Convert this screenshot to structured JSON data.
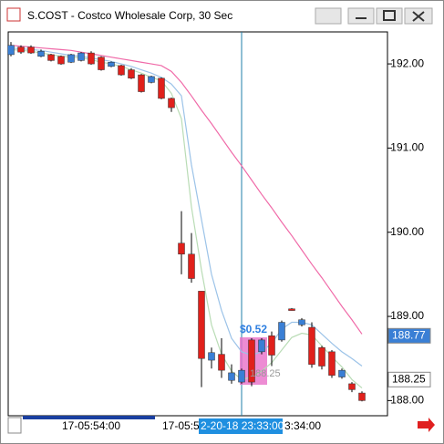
{
  "window_title": "S.COST - Costco Wholesale Corp, 30 Sec",
  "chart_data": {
    "type": "candlestick",
    "up_color": "#3a7fd5",
    "down_color": "#e0201b",
    "candles": {
      "open": [
        192.11,
        192.2,
        192.2,
        192.09,
        192.11,
        192.09,
        192.02,
        192.04,
        192.13,
        192.08,
        191.97,
        191.98,
        191.93,
        191.87,
        191.78,
        191.83,
        191.59,
        189.87,
        189.74,
        189.3,
        188.48,
        188.55,
        188.24,
        188.22,
        188.72,
        188.58,
        188.77,
        188.72,
        189.09,
        188.9,
        188.87,
        188.63,
        188.58,
        188.28,
        188.2,
        188.09
      ],
      "high": [
        192.26,
        192.22,
        192.22,
        192.17,
        192.12,
        192.1,
        192.12,
        192.14,
        192.15,
        192.09,
        192.03,
        191.99,
        191.95,
        191.88,
        191.86,
        191.84,
        191.6,
        190.25,
        189.99,
        189.3,
        188.63,
        188.74,
        188.43,
        188.38,
        188.74,
        188.74,
        188.82,
        188.95,
        189.1,
        188.98,
        188.93,
        188.65,
        188.6,
        188.38,
        188.22,
        188.11
      ],
      "low": [
        192.09,
        192.12,
        192.12,
        192.08,
        192.03,
        191.99,
        192.01,
        192.03,
        191.99,
        191.92,
        191.96,
        191.86,
        191.82,
        191.66,
        191.77,
        191.58,
        191.43,
        189.5,
        189.4,
        188.16,
        188.38,
        188.27,
        188.2,
        188.2,
        188.17,
        188.55,
        188.41,
        188.7,
        189.07,
        188.88,
        188.39,
        188.37,
        188.27,
        188.26,
        188.1,
        187.99
      ],
      "close": [
        192.22,
        192.14,
        192.13,
        192.15,
        192.04,
        192.0,
        192.11,
        192.13,
        192.0,
        191.93,
        192.02,
        191.87,
        191.83,
        191.67,
        191.85,
        191.59,
        191.48,
        189.74,
        189.45,
        188.5,
        188.57,
        188.36,
        188.33,
        188.36,
        188.22,
        188.72,
        188.54,
        188.93,
        189.07,
        188.96,
        188.43,
        188.41,
        188.3,
        188.36,
        188.13,
        188.0
      ]
    },
    "series": [
      {
        "color": "#f06aa8",
        "values": [
          192.22,
          192.21,
          192.2,
          192.19,
          192.18,
          192.17,
          192.16,
          192.14,
          192.12,
          192.1,
          192.08,
          192.06,
          192.04,
          192.02,
          192.0,
          191.98,
          191.91,
          191.78,
          191.62,
          191.45,
          191.29,
          191.12,
          190.95,
          190.79,
          190.62,
          190.45,
          190.29,
          190.12,
          189.96,
          189.79,
          189.62,
          189.46,
          189.29,
          189.12,
          188.96,
          188.79
        ]
      },
      {
        "color": "#9cc3e8",
        "values": [
          192.19,
          192.18,
          192.17,
          192.16,
          192.14,
          192.12,
          192.1,
          192.09,
          192.07,
          192.05,
          192.03,
          192.0,
          191.97,
          191.93,
          191.89,
          191.84,
          191.76,
          191.62,
          190.8,
          190.15,
          189.5,
          189.07,
          188.74,
          188.58,
          188.54,
          188.58,
          188.68,
          188.85,
          188.93,
          188.93,
          188.9,
          188.79,
          188.68,
          188.58,
          188.5,
          188.41
        ]
      },
      {
        "color": "#b9dcb5",
        "values": [
          192.17,
          192.16,
          192.15,
          192.13,
          192.11,
          192.09,
          192.08,
          192.07,
          192.05,
          192.02,
          192.0,
          191.97,
          191.93,
          191.89,
          191.84,
          191.8,
          191.65,
          191.35,
          190.3,
          189.55,
          188.9,
          188.55,
          188.35,
          188.25,
          188.28,
          188.35,
          188.45,
          188.6,
          188.75,
          188.8,
          188.78,
          188.65,
          188.52,
          188.4,
          188.25,
          188.15
        ]
      }
    ],
    "ylim": [
      187.82,
      192.38
    ],
    "yticks": [
      {
        "value": 192,
        "label": "192.00"
      },
      {
        "value": 191,
        "label": "191.00"
      },
      {
        "value": 190,
        "label": "190.00"
      },
      {
        "value": 189,
        "label": "189.00"
      },
      {
        "value": 188,
        "label": "188.00"
      }
    ],
    "price_markers": [
      {
        "value": 188.77,
        "label": "188.77",
        "color": "#3a7fd5"
      },
      {
        "value": 188.25,
        "label": "188.25",
        "color": "#ffffff"
      }
    ],
    "annotations": [
      "$0.52",
      "188.25"
    ],
    "x_labels": [
      "17-05:54:00",
      "17-05:5",
      "2-20-18 23:33:00",
      "3:34:00"
    ]
  }
}
